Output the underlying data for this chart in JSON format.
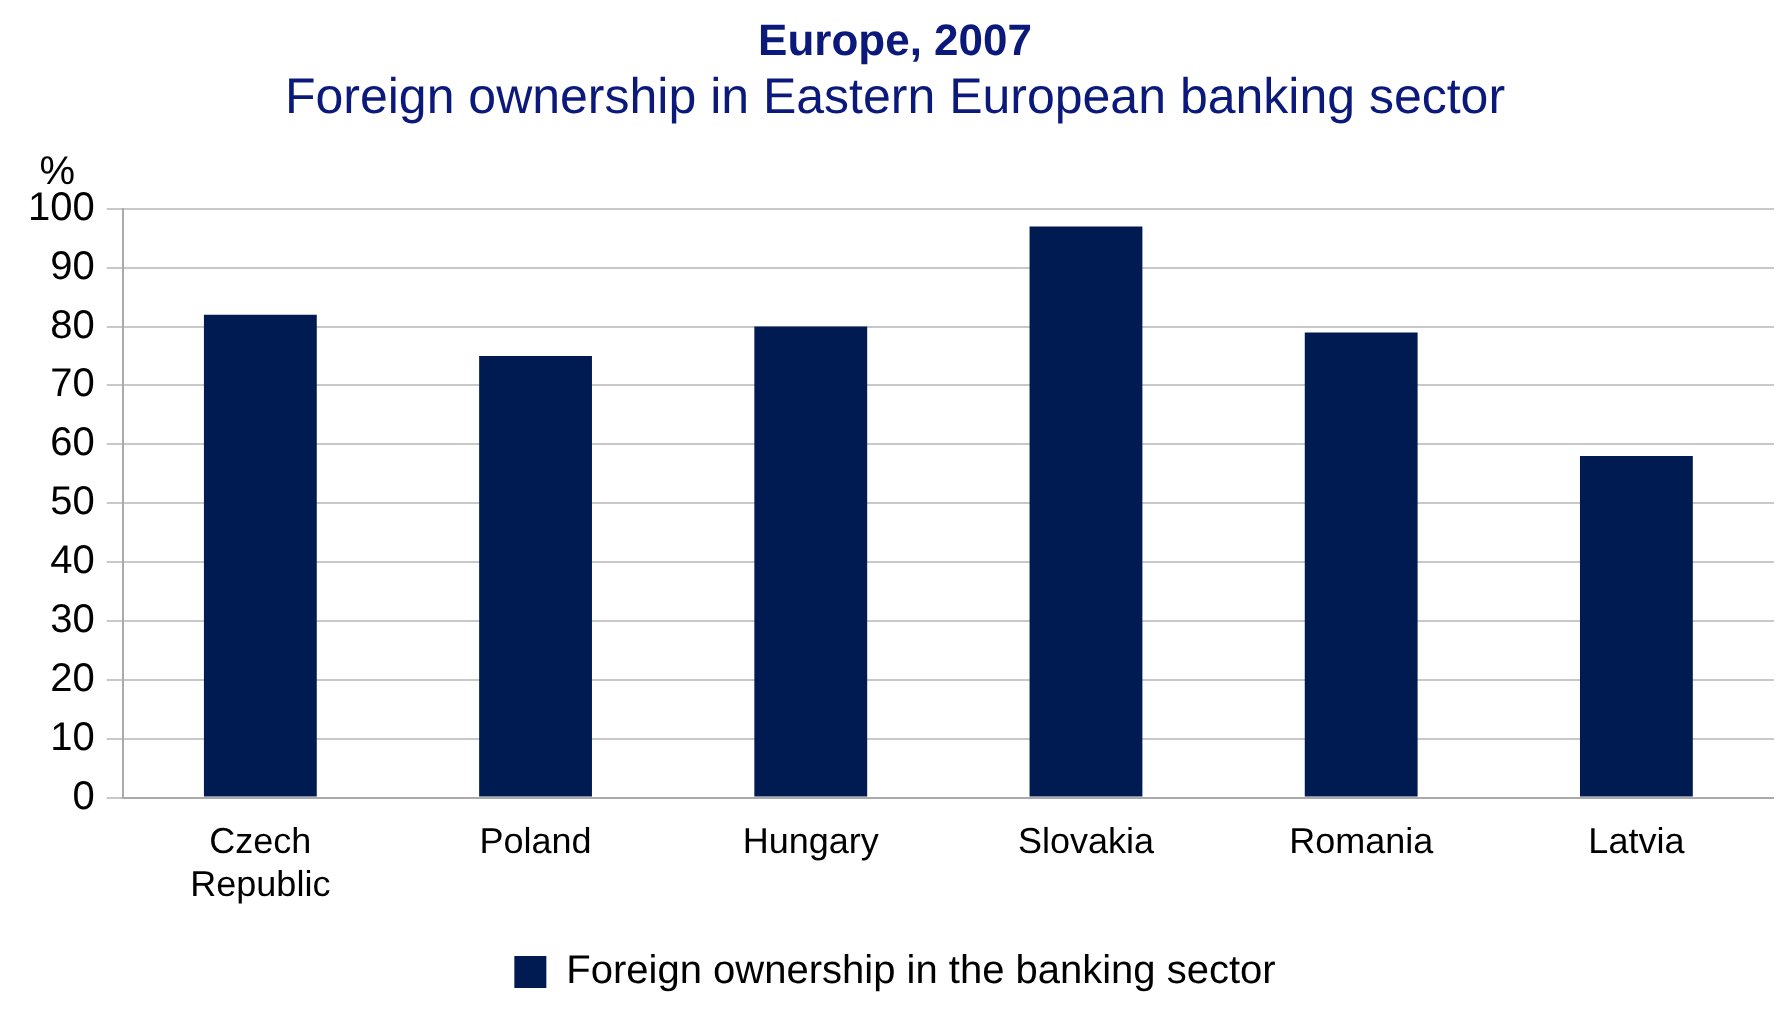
{
  "chart_data": {
    "type": "bar",
    "title": "Europe, 2007",
    "subtitle": "Foreign ownership in Eastern European banking sector",
    "ylabel": "%",
    "categories": [
      "Czech Republic",
      "Poland",
      "Hungary",
      "Slovakia",
      "Romania",
      "Latvia"
    ],
    "series": [
      {
        "name": "Foreign ownership in the banking sector",
        "color": "#001a52",
        "values": [
          82,
          75,
          80,
          97,
          79,
          58
        ]
      }
    ],
    "ylim": [
      0,
      100
    ],
    "yticks": [
      0,
      10,
      20,
      30,
      40,
      50,
      60,
      70,
      80,
      90,
      100
    ],
    "grid": "y",
    "legend": "bottom"
  }
}
